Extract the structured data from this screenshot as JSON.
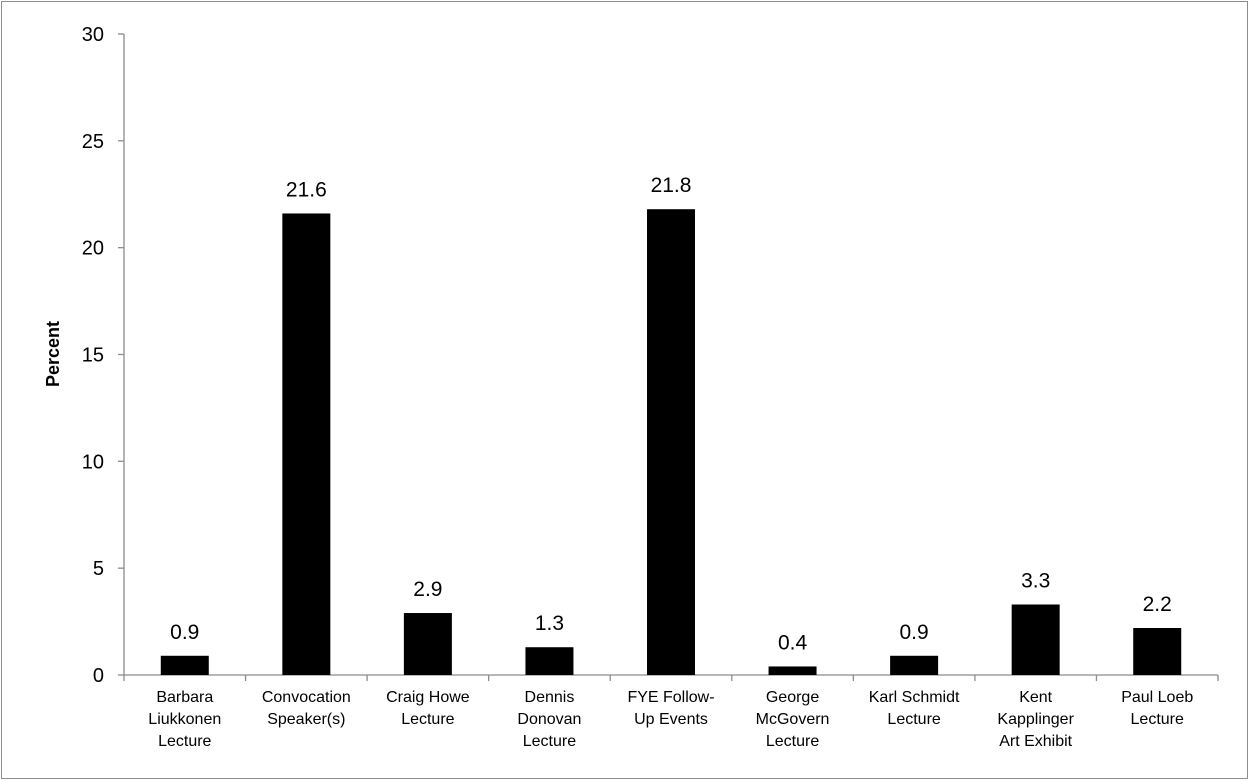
{
  "chart_data": {
    "type": "bar",
    "title": "",
    "xlabel": "",
    "ylabel": "Percent",
    "ylim": [
      0,
      30
    ],
    "yticks": [
      0,
      5,
      10,
      15,
      20,
      25,
      30
    ],
    "grid": false,
    "legend": "none",
    "bar_color": "#000000",
    "categories": [
      [
        "Barbara",
        "Liukkonen",
        "Lecture"
      ],
      [
        "Convocation",
        "Speaker(s)"
      ],
      [
        "Craig Howe",
        "Lecture"
      ],
      [
        "Dennis",
        "Donovan",
        "Lecture"
      ],
      [
        "FYE Follow-",
        "Up Events"
      ],
      [
        "George",
        "McGovern",
        "Lecture"
      ],
      [
        "Karl Schmidt",
        "Lecture"
      ],
      [
        "Kent",
        "Kapplinger",
        "Art Exhibit"
      ],
      [
        "Paul Loeb",
        "Lecture"
      ]
    ],
    "values": [
      0.9,
      21.6,
      2.9,
      1.3,
      21.8,
      0.4,
      0.9,
      3.3,
      2.2
    ],
    "data_labels": [
      "0.9",
      "21.6",
      "2.9",
      "1.3",
      "21.8",
      "0.4",
      "0.9",
      "3.3",
      "2.2"
    ]
  }
}
